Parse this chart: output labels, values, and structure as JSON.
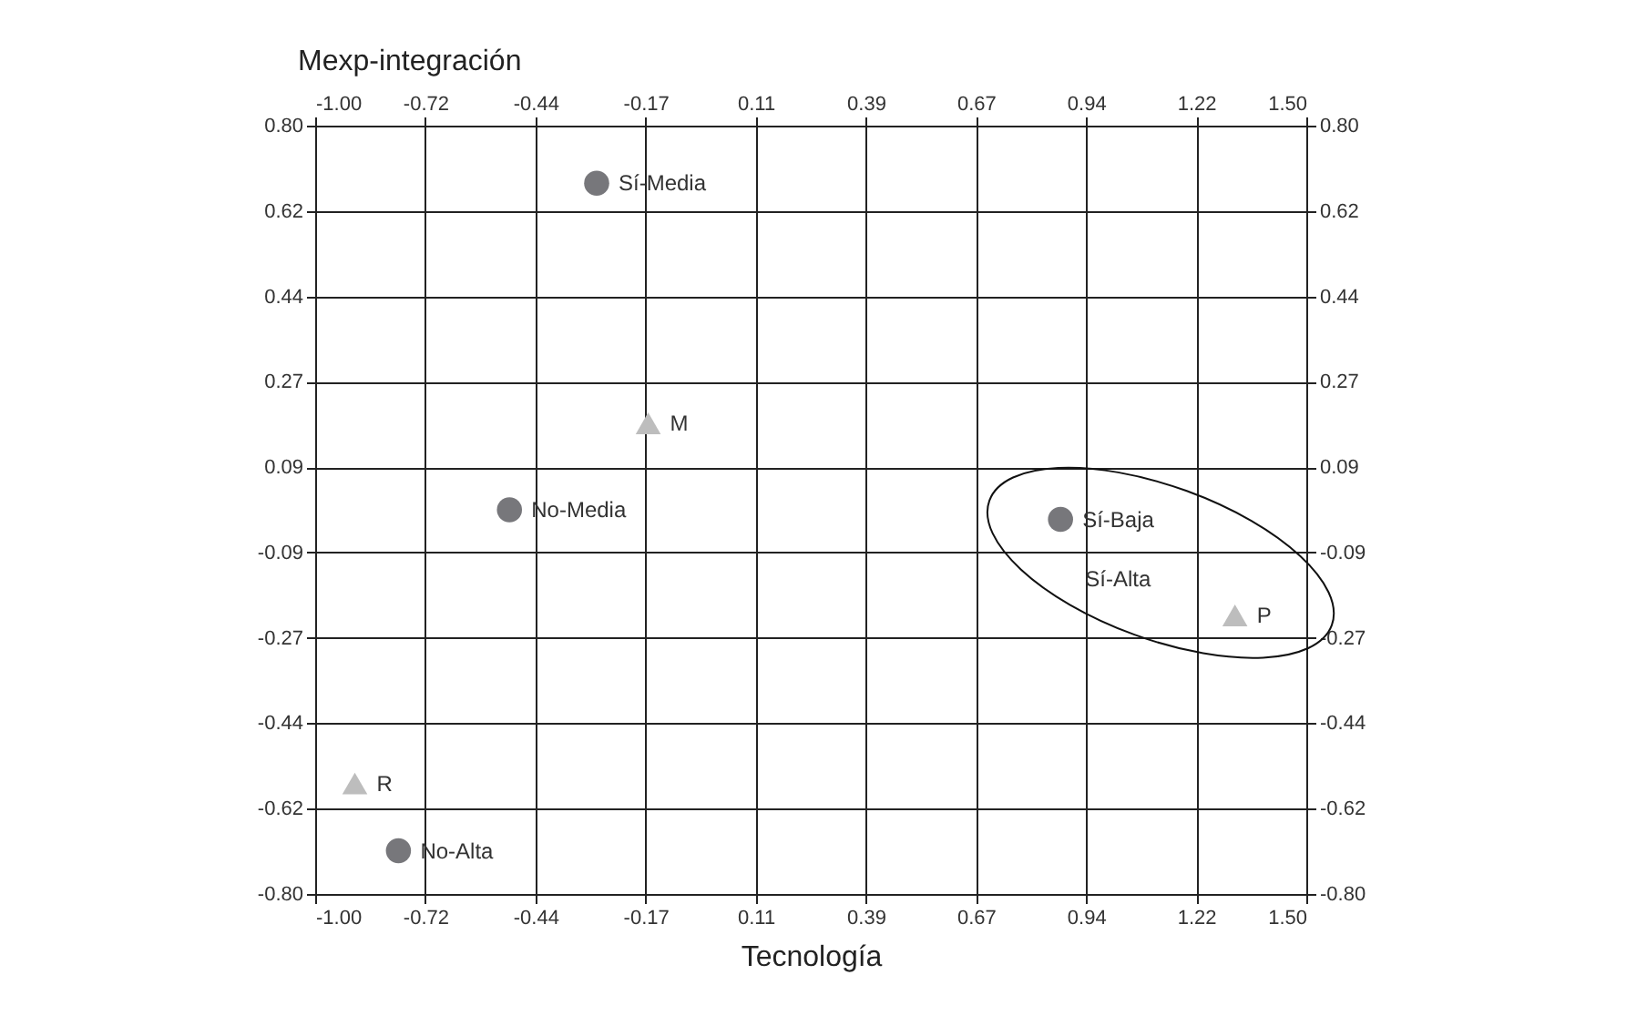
{
  "chart_data": {
    "type": "scatter",
    "xlabel": "Tecnología",
    "ylabel": "Mexp-integración",
    "xlim": [
      -1.0,
      1.5
    ],
    "ylim": [
      -0.8,
      0.8
    ],
    "x2lim": [
      -1.0,
      1.5
    ],
    "y2lim": [
      -0.8,
      0.8
    ],
    "xticks": [
      {
        "value": -1.0,
        "label": "-1.00"
      },
      {
        "value": -0.7222,
        "label": "-0.72"
      },
      {
        "value": -0.4444,
        "label": "-0.44"
      },
      {
        "value": -0.1667,
        "label": "-0.17"
      },
      {
        "value": 0.1111,
        "label": "0.11"
      },
      {
        "value": 0.3889,
        "label": "0.39"
      },
      {
        "value": 0.6667,
        "label": "0.67"
      },
      {
        "value": 0.9444,
        "label": "0.94"
      },
      {
        "value": 1.2222,
        "label": "1.22"
      },
      {
        "value": 1.5,
        "label": "1.50"
      }
    ],
    "x2ticks": [
      {
        "value": -1.0,
        "label": "-1.00"
      },
      {
        "value": -0.7222,
        "label": "-0.72"
      },
      {
        "value": -0.4444,
        "label": "-0.44"
      },
      {
        "value": -0.1667,
        "label": "-0.17"
      },
      {
        "value": 0.1111,
        "label": "0.11"
      },
      {
        "value": 0.3889,
        "label": "0.39"
      },
      {
        "value": 0.6667,
        "label": "0.67"
      },
      {
        "value": 0.9444,
        "label": "0.94"
      },
      {
        "value": 1.2222,
        "label": "1.22"
      },
      {
        "value": 1.5,
        "label": "1.50"
      }
    ],
    "yticks": [
      {
        "value": -0.8,
        "label": "-0.80"
      },
      {
        "value": -0.6222,
        "label": "-0.62"
      },
      {
        "value": -0.4444,
        "label": "-0.44"
      },
      {
        "value": -0.2667,
        "label": "-0.27"
      },
      {
        "value": -0.0889,
        "label": "-0.09"
      },
      {
        "value": 0.0889,
        "label": "0.09"
      },
      {
        "value": 0.2667,
        "label": "0.27"
      },
      {
        "value": 0.4444,
        "label": "0.44"
      },
      {
        "value": 0.6222,
        "label": "0.62"
      },
      {
        "value": 0.8,
        "label": "0.80"
      }
    ],
    "y2ticks": [
      {
        "value": -0.8,
        "label": "-0.80"
      },
      {
        "value": -0.6222,
        "label": "-0.62"
      },
      {
        "value": -0.4444,
        "label": "-0.44"
      },
      {
        "value": -0.2667,
        "label": "-0.27"
      },
      {
        "value": -0.0889,
        "label": "-0.09"
      },
      {
        "value": 0.0889,
        "label": "0.09"
      },
      {
        "value": 0.2667,
        "label": "0.27"
      },
      {
        "value": 0.4444,
        "label": "0.44"
      },
      {
        "value": 0.6222,
        "label": "0.62"
      },
      {
        "value": 0.8,
        "label": "0.80"
      }
    ],
    "grid": true,
    "series": [
      {
        "color": "#77777b",
        "marker": "circle",
        "x": [
          -0.29,
          -0.51,
          -0.79,
          0.88
        ],
        "values": [
          0.68,
          0.0,
          -0.71,
          -0.02
        ]
      },
      {
        "color": "#bdbdbd",
        "marker": "triangle",
        "x": [
          -0.16,
          -0.9,
          1.32
        ],
        "values": [
          0.18,
          -0.57,
          -0.22
        ]
      }
    ],
    "annotations": [
      {
        "text": "Sí-Media",
        "x": -0.29,
        "y": 0.68
      },
      {
        "text": "No-Media",
        "x": -0.51,
        "y": 0.0
      },
      {
        "text": "No-Alta",
        "x": -0.79,
        "y": -0.71
      },
      {
        "text": "Sí-Baja",
        "x": 0.88,
        "y": -0.02
      },
      {
        "text": "M",
        "x": -0.16,
        "y": 0.18
      },
      {
        "text": "R",
        "x": -0.9,
        "y": -0.57
      },
      {
        "text": "P",
        "x": 1.32,
        "y": -0.22
      },
      "Sí-Alta"
    ]
  }
}
